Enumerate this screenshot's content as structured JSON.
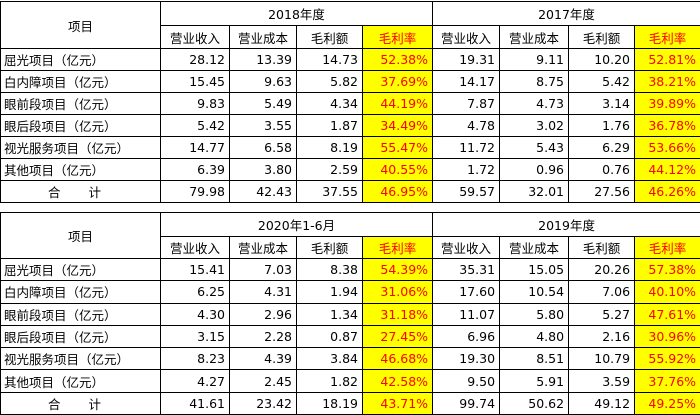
{
  "tables": [
    {
      "item_header": "项目",
      "groups": [
        {
          "title": "2018年度",
          "columns": [
            "营业收入",
            "营业成本",
            "毛利额",
            "毛利率"
          ]
        },
        {
          "title": "2017年度",
          "columns": [
            "营业收入",
            "营业成本",
            "毛利额",
            "毛利率"
          ]
        }
      ],
      "rows": [
        [
          "屈光项目（亿元）",
          "28.12",
          "13.39",
          "14.73",
          "52.38%",
          "19.31",
          "9.11",
          "10.20",
          "52.81%"
        ],
        [
          "白内障项目（亿元）",
          "15.45",
          "9.63",
          "5.82",
          "37.69%",
          "14.17",
          "8.75",
          "5.42",
          "38.21%"
        ],
        [
          "眼前段项目（亿元）",
          "9.83",
          "5.49",
          "4.34",
          "44.19%",
          "7.87",
          "4.73",
          "3.14",
          "39.89%"
        ],
        [
          "眼后段项目（亿元）",
          "5.42",
          "3.55",
          "1.87",
          "34.49%",
          "4.78",
          "3.02",
          "1.76",
          "36.78%"
        ],
        [
          "视光服务项目（亿元）",
          "14.77",
          "6.58",
          "8.19",
          "55.47%",
          "11.72",
          "5.43",
          "6.29",
          "53.66%"
        ],
        [
          "其他项目（亿元）",
          "6.39",
          "3.80",
          "2.59",
          "40.55%",
          "1.72",
          "0.96",
          "0.76",
          "44.12%"
        ],
        [
          "合 计",
          "79.98",
          "42.43",
          "37.55",
          "46.95%",
          "59.57",
          "32.01",
          "27.56",
          "46.26%"
        ]
      ]
    },
    {
      "item_header": "项目",
      "groups": [
        {
          "title": "2020年1-6月",
          "columns": [
            "营业收入",
            "营业成本",
            "毛利额",
            "毛利率"
          ]
        },
        {
          "title": "2019年度",
          "columns": [
            "营业收入",
            "营业成本",
            "毛利额",
            "毛利率"
          ]
        }
      ],
      "rows": [
        [
          "屈光项目（亿元）",
          "15.41",
          "7.03",
          "8.38",
          "54.39%",
          "35.31",
          "15.05",
          "20.26",
          "57.38%"
        ],
        [
          "白内障项目（亿元）",
          "6.25",
          "4.31",
          "1.94",
          "31.06%",
          "17.60",
          "10.54",
          "7.06",
          "40.10%"
        ],
        [
          "眼前段项目（亿元）",
          "4.30",
          "2.96",
          "1.34",
          "31.18%",
          "11.07",
          "5.80",
          "5.27",
          "47.61%"
        ],
        [
          "眼后段项目（亿元）",
          "3.15",
          "2.28",
          "0.87",
          "27.45%",
          "6.96",
          "4.80",
          "2.16",
          "30.96%"
        ],
        [
          "视光服务项目（亿元）",
          "8.23",
          "4.39",
          "3.84",
          "46.68%",
          "19.30",
          "8.51",
          "10.79",
          "55.92%"
        ],
        [
          "其他项目（亿元）",
          "4.27",
          "2.45",
          "1.82",
          "42.58%",
          "9.50",
          "5.91",
          "3.59",
          "37.76%"
        ],
        [
          "合 计",
          "41.61",
          "23.42",
          "18.19",
          "43.71%",
          "99.74",
          "50.62",
          "49.12",
          "49.25%"
        ]
      ]
    }
  ]
}
